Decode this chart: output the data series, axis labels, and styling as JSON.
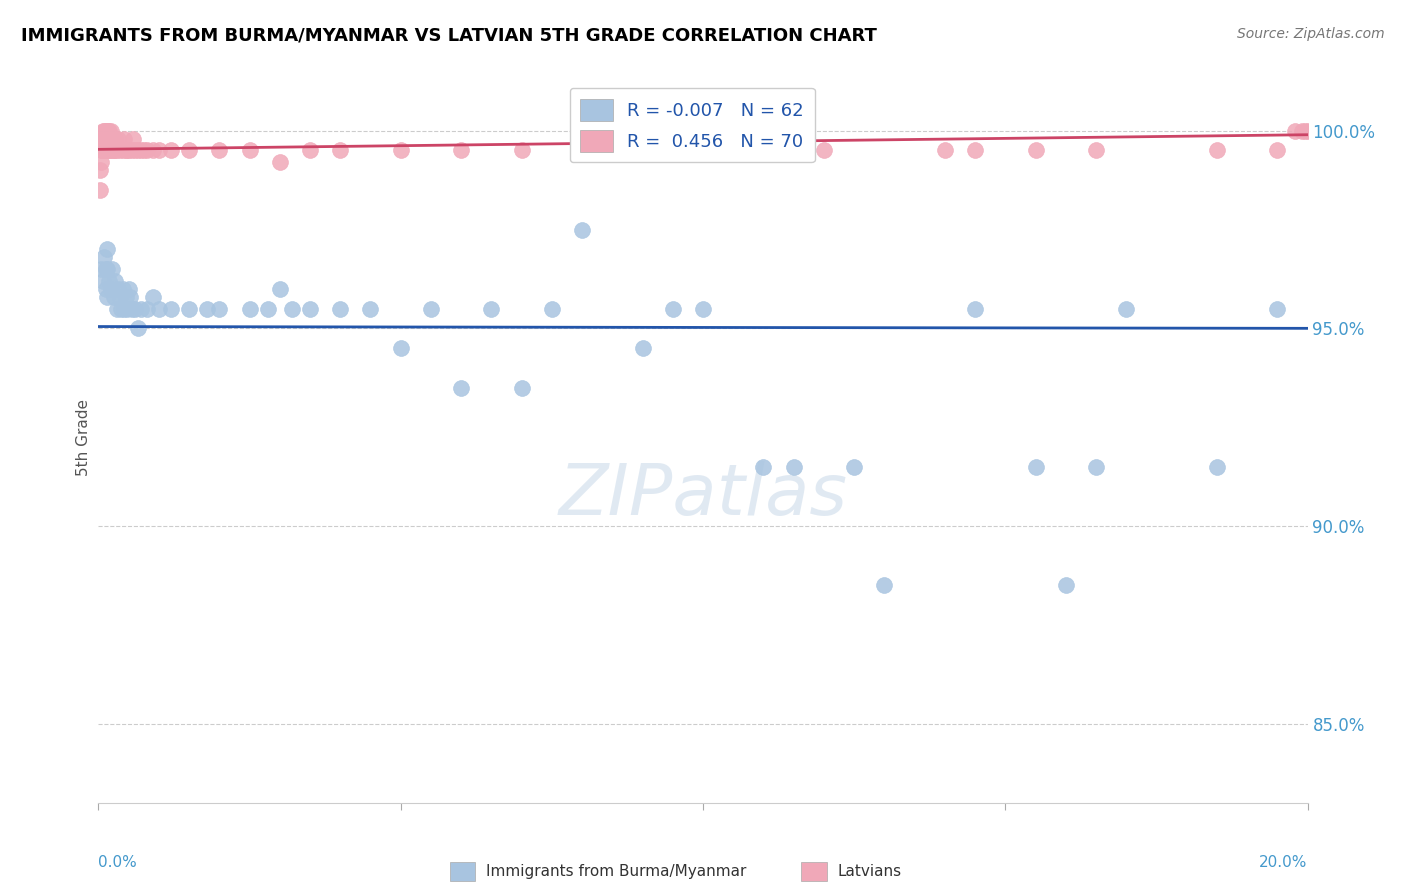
{
  "title": "IMMIGRANTS FROM BURMA/MYANMAR VS LATVIAN 5TH GRADE CORRELATION CHART",
  "source": "Source: ZipAtlas.com",
  "ylabel_label": "5th Grade",
  "xlim": [
    0.0,
    20.0
  ],
  "ylim": [
    83.0,
    101.5
  ],
  "yticks": [
    85.0,
    90.0,
    95.0,
    100.0
  ],
  "ytick_labels": [
    "85.0%",
    "90.0%",
    "95.0%",
    "100.0%"
  ],
  "xticks": [
    0,
    5,
    10,
    15,
    20
  ],
  "blue_R": -0.007,
  "blue_N": 62,
  "pink_R": 0.456,
  "pink_N": 70,
  "blue_color": "#a8c4e0",
  "pink_color": "#f0a8b8",
  "blue_line_color": "#2255aa",
  "pink_line_color": "#cc4466",
  "watermark": "ZIPatlas",
  "blue_x": [
    0.05,
    0.08,
    0.1,
    0.12,
    0.12,
    0.14,
    0.15,
    0.15,
    0.18,
    0.2,
    0.22,
    0.25,
    0.28,
    0.3,
    0.32,
    0.35,
    0.38,
    0.4,
    0.42,
    0.45,
    0.48,
    0.5,
    0.52,
    0.55,
    0.6,
    0.65,
    0.7,
    0.8,
    0.9,
    1.0,
    1.2,
    1.5,
    1.8,
    2.0,
    2.5,
    2.8,
    3.0,
    3.2,
    3.5,
    4.0,
    4.5,
    5.5,
    6.5,
    7.5,
    8.0,
    9.5,
    10.0,
    11.0,
    12.5,
    14.5,
    15.5,
    16.5,
    17.0,
    18.5,
    19.5,
    5.0,
    6.0,
    7.0,
    9.0,
    11.5,
    13.0,
    16.0
  ],
  "blue_y": [
    96.5,
    96.2,
    96.8,
    96.5,
    96.0,
    95.8,
    96.5,
    97.0,
    96.2,
    96.0,
    96.5,
    95.8,
    96.2,
    95.5,
    96.0,
    95.8,
    95.5,
    96.0,
    95.5,
    95.8,
    95.5,
    96.0,
    95.8,
    95.5,
    95.5,
    95.0,
    95.5,
    95.5,
    95.8,
    95.5,
    95.5,
    95.5,
    95.5,
    95.5,
    95.5,
    95.5,
    96.0,
    95.5,
    95.5,
    95.5,
    95.5,
    95.5,
    95.5,
    95.5,
    97.5,
    95.5,
    95.5,
    91.5,
    91.5,
    95.5,
    91.5,
    91.5,
    95.5,
    91.5,
    95.5,
    94.5,
    93.5,
    93.5,
    94.5,
    91.5,
    88.5,
    88.5
  ],
  "pink_x": [
    0.02,
    0.03,
    0.05,
    0.05,
    0.06,
    0.07,
    0.08,
    0.08,
    0.09,
    0.1,
    0.1,
    0.11,
    0.12,
    0.12,
    0.13,
    0.14,
    0.15,
    0.15,
    0.16,
    0.17,
    0.18,
    0.18,
    0.19,
    0.2,
    0.2,
    0.22,
    0.23,
    0.25,
    0.27,
    0.28,
    0.3,
    0.32,
    0.35,
    0.4,
    0.42,
    0.45,
    0.48,
    0.5,
    0.55,
    0.58,
    0.6,
    0.65,
    0.7,
    0.75,
    0.8,
    0.9,
    1.0,
    1.2,
    1.5,
    2.0,
    2.5,
    3.0,
    3.5,
    4.0,
    5.0,
    6.0,
    7.0,
    8.0,
    10.0,
    12.0,
    14.0,
    14.5,
    15.5,
    16.5,
    18.5,
    19.5,
    19.8,
    19.9,
    19.95,
    20.0
  ],
  "pink_y": [
    98.5,
    99.0,
    99.5,
    99.2,
    99.5,
    99.8,
    99.5,
    100.0,
    99.5,
    99.8,
    100.0,
    99.5,
    99.8,
    100.0,
    99.5,
    100.0,
    99.8,
    99.5,
    100.0,
    99.5,
    99.8,
    100.0,
    99.5,
    100.0,
    99.8,
    99.5,
    99.8,
    99.5,
    99.8,
    99.5,
    99.5,
    99.8,
    99.5,
    99.5,
    99.8,
    99.5,
    99.5,
    99.5,
    99.5,
    99.8,
    99.5,
    99.5,
    99.5,
    99.5,
    99.5,
    99.5,
    99.5,
    99.5,
    99.5,
    99.5,
    99.5,
    99.2,
    99.5,
    99.5,
    99.5,
    99.5,
    99.5,
    99.5,
    99.5,
    99.5,
    99.5,
    99.5,
    99.5,
    99.5,
    99.5,
    99.5,
    100.0,
    100.0,
    100.0,
    100.0
  ]
}
